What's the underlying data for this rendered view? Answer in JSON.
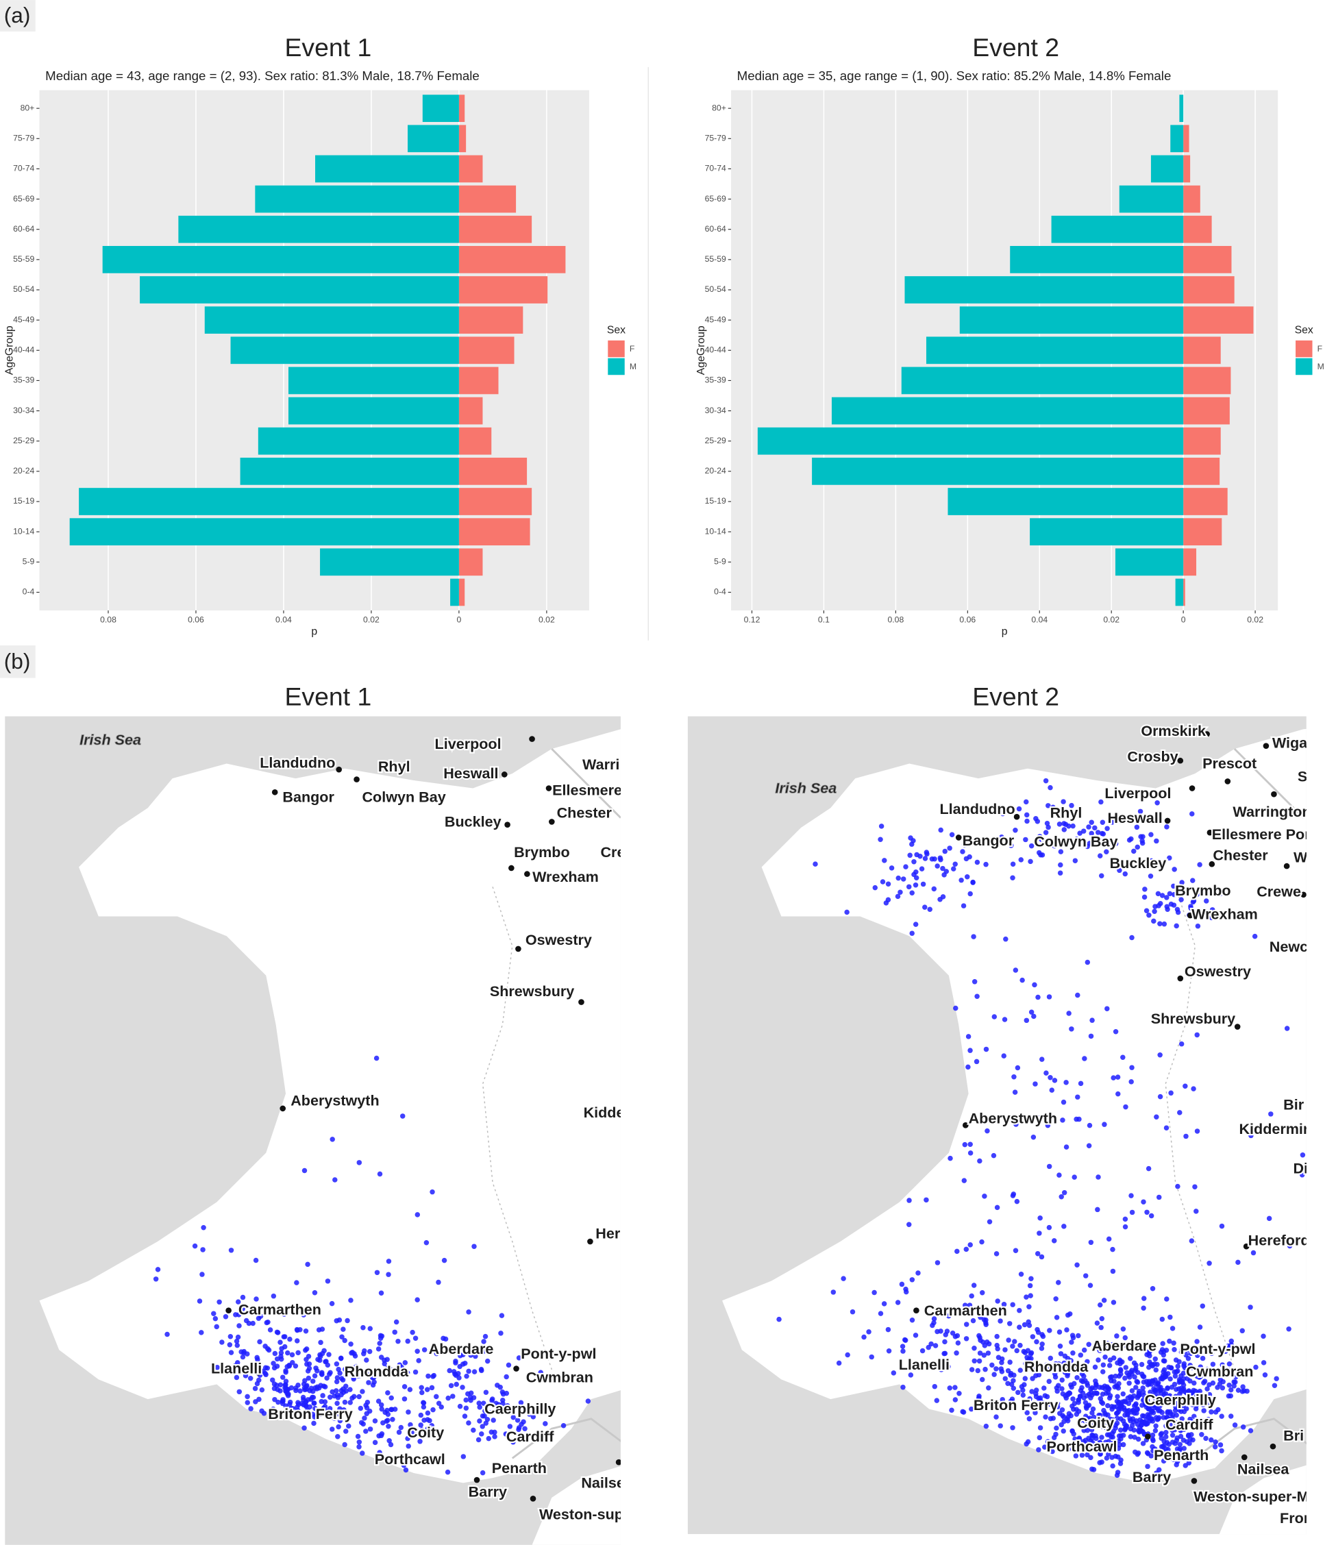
{
  "figure": {
    "panel_a": "(a)",
    "panel_b": "(b)"
  },
  "chart_data": [
    {
      "type": "bar",
      "orientation": "horizontal",
      "title": "Event 1",
      "subtitle": "Median age = 43, age range = (2, 93). Sex ratio: 81.3% Male, 18.7% Female",
      "xlabel": "p",
      "ylabel": "AgeGroup",
      "legend_title": "Sex",
      "legend": "right",
      "grid": true,
      "categories": [
        "0-4",
        "5-9",
        "10-14",
        "15-19",
        "20-24",
        "25-29",
        "30-34",
        "35-39",
        "40-44",
        "45-49",
        "50-54",
        "55-59",
        "60-64",
        "65-69",
        "70-74",
        "75-79",
        "80+"
      ],
      "series": [
        {
          "name": "F",
          "color": "#f8766d",
          "values": [
            0.0013,
            0.0054,
            0.0162,
            0.0166,
            0.0155,
            0.0074,
            0.0054,
            0.009,
            0.0126,
            0.0146,
            0.0202,
            0.0243,
            0.0166,
            0.013,
            0.0054,
            0.0016,
            0.0013
          ]
        },
        {
          "name": "M",
          "color": "#00bfc4",
          "values": [
            -0.002,
            -0.0317,
            -0.0888,
            -0.0867,
            -0.0499,
            -0.0458,
            -0.0389,
            -0.0389,
            -0.0521,
            -0.058,
            -0.0728,
            -0.0813,
            -0.064,
            -0.0465,
            -0.0328,
            -0.0117,
            -0.0083
          ]
        }
      ],
      "xlim": [
        -0.0957,
        0.0297
      ],
      "xticks": [
        {
          "value": -0.08,
          "label": "0.08"
        },
        {
          "value": -0.06,
          "label": "0.06"
        },
        {
          "value": -0.04,
          "label": "0.04"
        },
        {
          "value": -0.02,
          "label": "0.02"
        },
        0,
        0.02
      ]
    },
    {
      "type": "bar",
      "orientation": "horizontal",
      "title": "Event 2",
      "subtitle": "Median age = 35, age range = (1, 90). Sex ratio: 85.2% Male, 14.8% Female",
      "xlabel": "p",
      "ylabel": "AgeGroup",
      "legend_title": "Sex",
      "legend": "right",
      "grid": true,
      "categories": [
        "0-4",
        "5-9",
        "10-14",
        "15-19",
        "20-24",
        "25-29",
        "30-34",
        "35-39",
        "40-44",
        "45-49",
        "50-54",
        "55-59",
        "60-64",
        "65-69",
        "70-74",
        "75-79",
        "80+"
      ],
      "series": [
        {
          "name": "F",
          "color": "#f8766d",
          "values": [
            0.0005,
            0.0036,
            0.0107,
            0.0123,
            0.0101,
            0.0104,
            0.0129,
            0.0132,
            0.0104,
            0.0195,
            0.0142,
            0.0134,
            0.0079,
            0.0047,
            0.0019,
            0.0016,
            0
          ]
        },
        {
          "name": "M",
          "color": "#00bfc4",
          "values": [
            -0.0022,
            -0.0189,
            -0.0427,
            -0.0655,
            -0.1033,
            -0.1184,
            -0.0978,
            -0.0784,
            -0.0715,
            -0.0622,
            -0.0775,
            -0.0482,
            -0.0367,
            -0.0178,
            -0.009,
            -0.0036,
            -0.0011
          ]
        }
      ],
      "xlim": [
        -0.1258,
        0.0263
      ],
      "xticks": [
        {
          "value": -0.12,
          "label": "0.12"
        },
        {
          "value": -0.1,
          "label": "0.1"
        },
        {
          "value": -0.08,
          "label": "0.08"
        },
        {
          "value": -0.06,
          "label": "0.06"
        },
        {
          "value": -0.04,
          "label": "0.04"
        },
        {
          "value": -0.02,
          "label": "0.02"
        },
        0,
        0.02
      ]
    }
  ],
  "maps": [
    {
      "title": "Event 1",
      "sea": "Irish Sea",
      "places": [
        "Liverpool",
        "Llandudno",
        "Rhyl",
        "Heswall",
        "Warri",
        "Bangor",
        "Colwyn Bay",
        "Ellesmere",
        "Buckley",
        "Chester",
        "Brymbo",
        "Cre",
        "Wrexham",
        "Oswestry",
        "Shrewsbury",
        "Aberystwyth",
        "Kidde",
        "Her",
        "Carmarthen",
        "Aberdare",
        "Pont-y-pwl",
        "Llanelli",
        "Rhondda",
        "Cwmbran",
        "Briton Ferry",
        "Caerphilly",
        "Cardiff",
        "Coity",
        "Porthcawl",
        "Penarth",
        "Nailse",
        "Barry",
        "Weston-sup"
      ]
    },
    {
      "title": "Event 2",
      "sea": "Irish Sea",
      "places": [
        "Ormskirk",
        "Wigar",
        "Crosby",
        "Prescot",
        "S",
        "Liverpool",
        "Llandudno",
        "Rhyl",
        "Heswall",
        "Warrington",
        "Bangor",
        "Colwyn Bay",
        "Ellesmere Por",
        "Chester",
        "W",
        "Buckley",
        "Brymbo",
        "Crewe",
        "Wrexham",
        "Newc",
        "Oswestry",
        "Shrewsbury",
        "Bir",
        "Aberystwyth",
        "Kiddermir",
        "Di",
        "Hereford",
        "Carmarthen",
        "Pont-y-pwl",
        "Llanelli",
        "Rhondda",
        "Cwmbran",
        "Aberdare",
        "Briton Ferry",
        "Caerphilly",
        "Cardiff",
        "Coity",
        "Bri",
        "Porthcawl",
        "Penarth",
        "Nailsea",
        "Barry",
        "Weston-super-M",
        "Fror"
      ]
    }
  ]
}
